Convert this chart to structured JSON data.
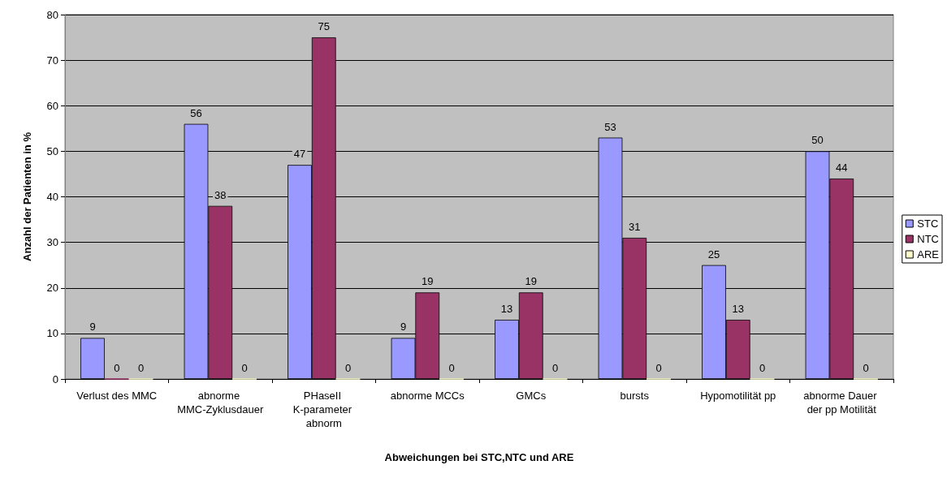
{
  "chart_data": {
    "type": "bar",
    "xlabel": "Abweichungen bei STC,NTC und ARE",
    "ylabel": "Anzahl der Patienten in %",
    "categories": [
      "Verlust des MMC",
      "abnorme MMC-Zyklusdauer",
      "PHaseII K-parameter abnorm",
      "abnorme MCCs",
      "GMCs",
      "bursts",
      "Hypomotilität pp",
      "abnorme Dauer der pp Motilität"
    ],
    "series": [
      {
        "name": "STC",
        "color": "#9999ff",
        "values": [
          9,
          56,
          47,
          9,
          13,
          53,
          25,
          50
        ]
      },
      {
        "name": "NTC",
        "color": "#993366",
        "values": [
          0,
          38,
          75,
          19,
          19,
          31,
          13,
          44
        ]
      },
      {
        "name": "ARE",
        "color": "#ffffcc",
        "values": [
          0,
          0,
          0,
          0,
          0,
          0,
          0,
          0
        ]
      }
    ],
    "ylim": [
      0,
      80
    ],
    "yticks": [
      0,
      10,
      20,
      30,
      40,
      50,
      60,
      70,
      80
    ],
    "grid": "y",
    "legend": "right",
    "data_labels": true
  }
}
